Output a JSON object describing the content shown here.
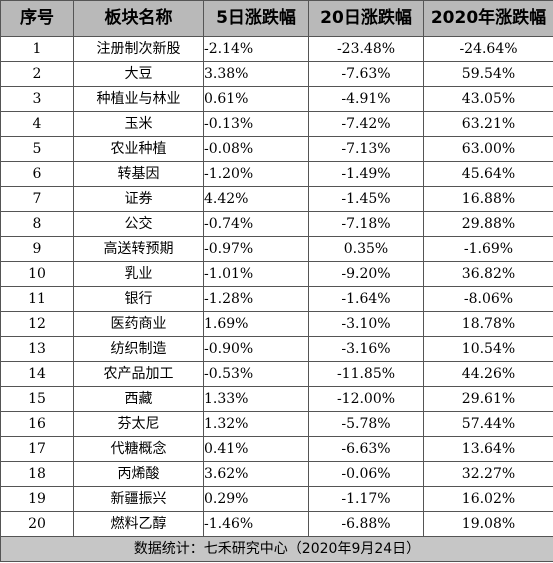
{
  "table": {
    "headers": [
      "序号",
      "板块名称",
      "5日涨跌幅",
      "20日涨跌幅",
      "2020年涨跌幅"
    ],
    "rows": [
      {
        "idx": "1",
        "name": "注册制次新股",
        "d5": "-2.14%",
        "d20": "-23.48%",
        "y2020": "-24.64%"
      },
      {
        "idx": "2",
        "name": "大豆",
        "d5": "3.38%",
        "d20": "-7.63%",
        "y2020": "59.54%"
      },
      {
        "idx": "3",
        "name": "种植业与林业",
        "d5": "0.61%",
        "d20": "-4.91%",
        "y2020": "43.05%"
      },
      {
        "idx": "4",
        "name": "玉米",
        "d5": "-0.13%",
        "d20": "-7.42%",
        "y2020": "63.21%"
      },
      {
        "idx": "5",
        "name": "农业种植",
        "d5": "-0.08%",
        "d20": "-7.13%",
        "y2020": "63.00%"
      },
      {
        "idx": "6",
        "name": "转基因",
        "d5": "-1.20%",
        "d20": "-1.49%",
        "y2020": "45.64%"
      },
      {
        "idx": "7",
        "name": "证券",
        "d5": "4.42%",
        "d20": "-1.45%",
        "y2020": "16.88%"
      },
      {
        "idx": "8",
        "name": "公交",
        "d5": "-0.74%",
        "d20": "-7.18%",
        "y2020": "29.88%"
      },
      {
        "idx": "9",
        "name": "高送转预期",
        "d5": "-0.97%",
        "d20": "0.35%",
        "y2020": "-1.69%"
      },
      {
        "idx": "10",
        "name": "乳业",
        "d5": "-1.01%",
        "d20": "-9.20%",
        "y2020": "36.82%"
      },
      {
        "idx": "11",
        "name": "银行",
        "d5": "-1.28%",
        "d20": "-1.64%",
        "y2020": "-8.06%"
      },
      {
        "idx": "12",
        "name": "医药商业",
        "d5": "1.69%",
        "d20": "-3.10%",
        "y2020": "18.78%"
      },
      {
        "idx": "13",
        "name": "纺织制造",
        "d5": "-0.90%",
        "d20": "-3.16%",
        "y2020": "10.54%"
      },
      {
        "idx": "14",
        "name": "农产品加工",
        "d5": "-0.53%",
        "d20": "-11.85%",
        "y2020": "44.26%"
      },
      {
        "idx": "15",
        "name": "西藏",
        "d5": "1.33%",
        "d20": "-12.00%",
        "y2020": "29.61%"
      },
      {
        "idx": "16",
        "name": "芬太尼",
        "d5": "1.32%",
        "d20": "-5.78%",
        "y2020": "57.44%"
      },
      {
        "idx": "17",
        "name": "代糖概念",
        "d5": "0.41%",
        "d20": "-6.63%",
        "y2020": "13.64%"
      },
      {
        "idx": "18",
        "name": "丙烯酸",
        "d5": "3.62%",
        "d20": "-0.06%",
        "y2020": "32.27%"
      },
      {
        "idx": "19",
        "name": "新疆振兴",
        "d5": "0.29%",
        "d20": "-1.17%",
        "y2020": "16.02%"
      },
      {
        "idx": "20",
        "name": "燃料乙醇",
        "d5": "-1.46%",
        "d20": "-6.88%",
        "y2020": "19.08%"
      }
    ],
    "footer": "数据统计：七禾研究中心（2020年9月24日）"
  }
}
